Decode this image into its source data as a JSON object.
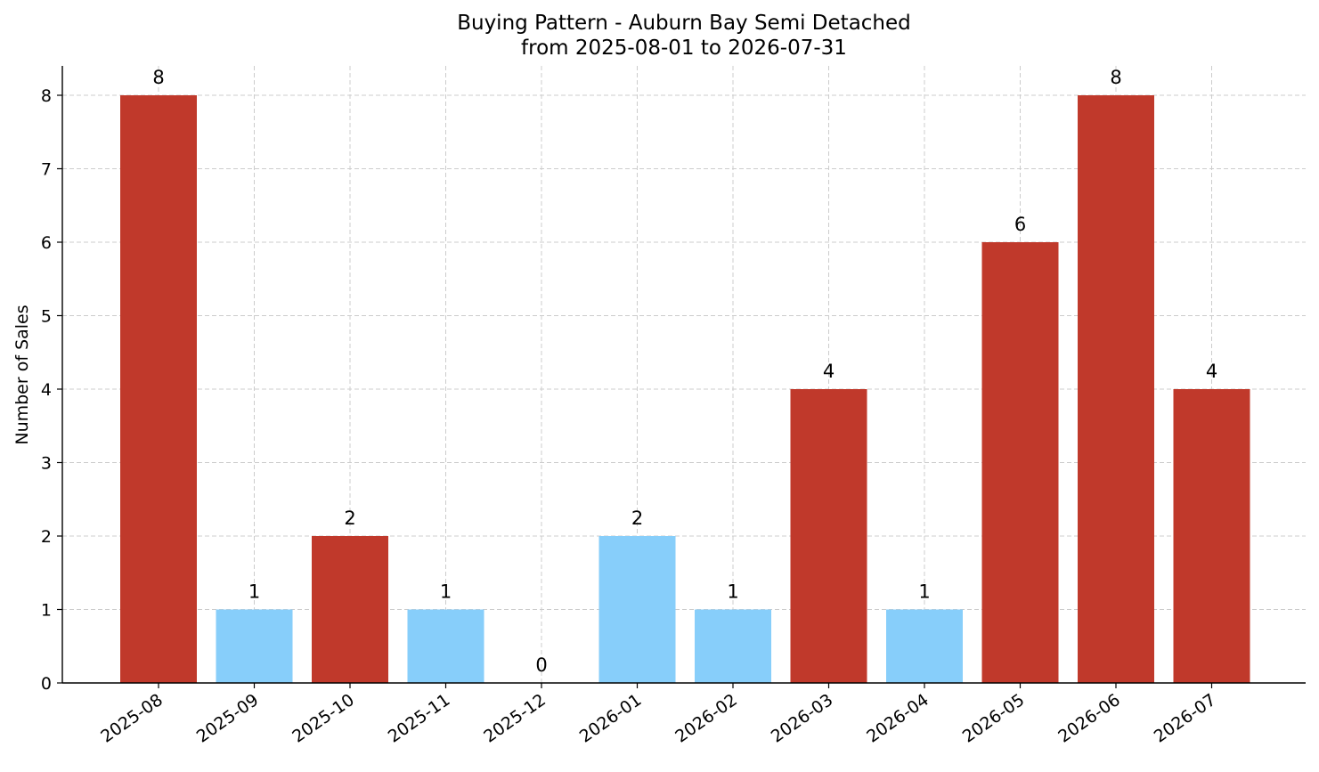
{
  "chart_data": {
    "type": "bar",
    "title": "Buying Pattern - Auburn Bay Semi Detached",
    "subtitle": "from 2025-08-01 to 2026-07-31",
    "xlabel": "",
    "ylabel": "Number of Sales",
    "categories": [
      "2025-08",
      "2025-09",
      "2025-10",
      "2025-11",
      "2025-12",
      "2026-01",
      "2026-02",
      "2026-03",
      "2026-04",
      "2026-05",
      "2026-06",
      "2026-07"
    ],
    "values": [
      8,
      1,
      2,
      1,
      0,
      2,
      1,
      4,
      1,
      6,
      8,
      4
    ],
    "value_labels": [
      "8",
      "1",
      "2",
      "1",
      "0",
      "2",
      "1",
      "4",
      "1",
      "6",
      "8",
      "4"
    ],
    "bar_colors": [
      "#c0392b",
      "#87cefa",
      "#c0392b",
      "#87cefa",
      "#87cefa",
      "#87cefa",
      "#87cefa",
      "#c0392b",
      "#87cefa",
      "#c0392b",
      "#c0392b",
      "#c0392b"
    ],
    "yticks": [
      0,
      1,
      2,
      3,
      4,
      5,
      6,
      7,
      8
    ],
    "ytick_labels": [
      "0",
      "1",
      "2",
      "3",
      "4",
      "5",
      "6",
      "7",
      "8"
    ],
    "ylim": [
      0,
      8.4
    ],
    "grid": true,
    "legend": "none",
    "colors": {
      "high": "#c0392b",
      "low": "#87cefa"
    }
  }
}
